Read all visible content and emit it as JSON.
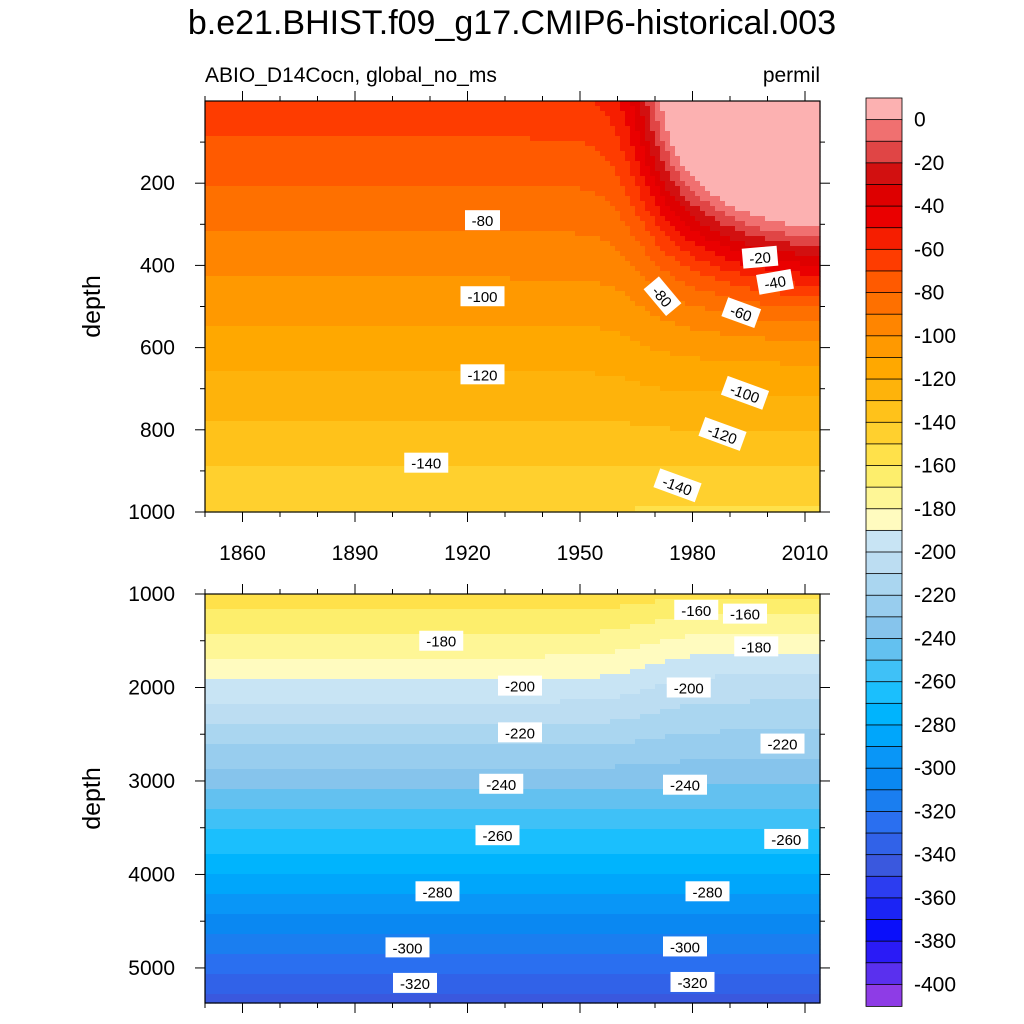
{
  "title": "b.e21.BHIST.f09_g17.CMIP6-historical.003",
  "variable_label": "ABIO_D14Cocn, global_no_ms",
  "units_label": "permil",
  "chart_data": [
    {
      "type": "heatmap",
      "panel": "upper",
      "ylabel": "depth",
      "xlim": [
        1850,
        2014
      ],
      "ylim": [
        1000,
        0
      ],
      "x_ticks": [
        1860,
        1890,
        1920,
        1950,
        1980,
        2010
      ],
      "y_ticks": [
        200,
        400,
        600,
        800,
        1000
      ],
      "contour_interval": 10,
      "contour_labels": [
        {
          "text": "-80",
          "x": 1924,
          "y": 290,
          "rotation": 0
        },
        {
          "text": "-100",
          "x": 1924,
          "y": 475,
          "rotation": 0
        },
        {
          "text": "-120",
          "x": 1924,
          "y": 665,
          "rotation": 0
        },
        {
          "text": "-140",
          "x": 1909,
          "y": 880,
          "rotation": 0
        },
        {
          "text": "-20",
          "x": 1998,
          "y": 380,
          "rotation": -5
        },
        {
          "text": "-40",
          "x": 2002,
          "y": 440,
          "rotation": -10
        },
        {
          "text": "-60",
          "x": 1993,
          "y": 515,
          "rotation": 20
        },
        {
          "text": "-80",
          "x": 1972,
          "y": 475,
          "rotation": 50
        },
        {
          "text": "-100",
          "x": 1994,
          "y": 710,
          "rotation": 20
        },
        {
          "text": "-120",
          "x": 1988,
          "y": 810,
          "rotation": 20
        },
        {
          "text": "-140",
          "x": 1976,
          "y": 935,
          "rotation": 20
        }
      ]
    },
    {
      "type": "heatmap",
      "panel": "lower",
      "ylabel": "depth",
      "xlim": [
        1850,
        2014
      ],
      "ylim": [
        5375,
        1000
      ],
      "y_ticks": [
        1000,
        2000,
        3000,
        4000,
        5000
      ],
      "contour_interval": 10,
      "contour_labels": [
        {
          "text": "-160",
          "x": 1981,
          "y": 1170,
          "rotation": 0
        },
        {
          "text": "-160",
          "x": 1994,
          "y": 1210,
          "rotation": 0
        },
        {
          "text": "-180",
          "x": 1913,
          "y": 1500,
          "rotation": 0
        },
        {
          "text": "-180",
          "x": 1997,
          "y": 1560,
          "rotation": 0
        },
        {
          "text": "-200",
          "x": 1934,
          "y": 1980,
          "rotation": 0
        },
        {
          "text": "-200",
          "x": 1979,
          "y": 2000,
          "rotation": 0
        },
        {
          "text": "-220",
          "x": 1934,
          "y": 2480,
          "rotation": 0
        },
        {
          "text": "-220",
          "x": 2004,
          "y": 2600,
          "rotation": 0
        },
        {
          "text": "-240",
          "x": 1929,
          "y": 3030,
          "rotation": 0
        },
        {
          "text": "-240",
          "x": 1978,
          "y": 3040,
          "rotation": 0
        },
        {
          "text": "-260",
          "x": 1928,
          "y": 3580,
          "rotation": 0
        },
        {
          "text": "-260",
          "x": 2005,
          "y": 3620,
          "rotation": 0
        },
        {
          "text": "-280",
          "x": 1912,
          "y": 4180,
          "rotation": 0
        },
        {
          "text": "-280",
          "x": 1984,
          "y": 4180,
          "rotation": 0
        },
        {
          "text": "-300",
          "x": 1904,
          "y": 4780,
          "rotation": 0
        },
        {
          "text": "-300",
          "x": 1978,
          "y": 4770,
          "rotation": 0
        },
        {
          "text": "-320",
          "x": 1906,
          "y": 5160,
          "rotation": 0
        },
        {
          "text": "-320",
          "x": 1980,
          "y": 5150,
          "rotation": 0
        }
      ]
    }
  ],
  "colorbar": {
    "labels": [
      "0",
      "-20",
      "-40",
      "-60",
      "-80",
      "-100",
      "-120",
      "-140",
      "-160",
      "-180",
      "-200",
      "-220",
      "-240",
      "-260",
      "-280",
      "-300",
      "-320",
      "-340",
      "-360",
      "-380",
      "-400"
    ],
    "colors": [
      "#fcb1b1",
      "#f07070",
      "#e04545",
      "#d21010",
      "#de0000",
      "#ea0000",
      "#f61e00",
      "#fe3c00",
      "#ff5a00",
      "#fe7000",
      "#ff8500",
      "#ff9900",
      "#ffa800",
      "#feb30b",
      "#ffc21a",
      "#ffd02e",
      "#ffe14a",
      "#fdee6c",
      "#fef696",
      "#fffbbf",
      "#c8e4f4",
      "#bcddf2",
      "#aad6f0",
      "#98cdee",
      "#86c4ec",
      "#63c1f0",
      "#3fc1f7",
      "#1bbffd",
      "#00b4fd",
      "#00a6fb",
      "#0996f7",
      "#0a88f2",
      "#1a7ef0",
      "#2a6ff0",
      "#3162e8",
      "#3a58de",
      "#2c3df0",
      "#1b24f5",
      "#0a0ffa",
      "#2a1bf6",
      "#5a30ee",
      "#8e3ce6"
    ]
  }
}
